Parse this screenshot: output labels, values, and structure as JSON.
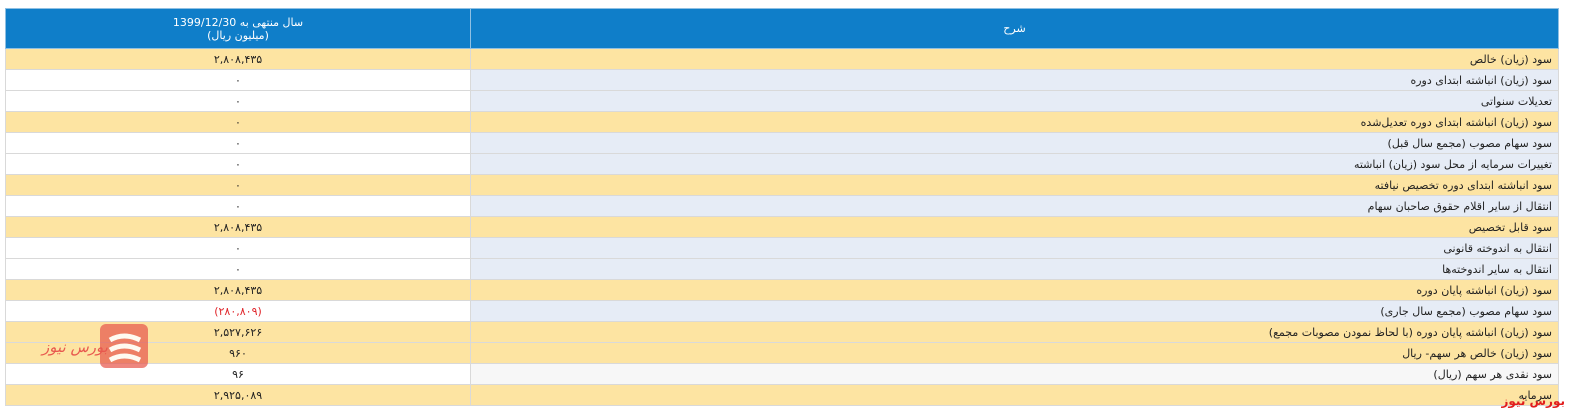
{
  "table": {
    "headers": {
      "value_line1": "سال منتهی به 1399/12/30",
      "value_line2": "(میلیون ریال)",
      "description": "شرح"
    },
    "rows": [
      {
        "value": "۲,۸۰۸,۴۳۵",
        "desc": "سود (زیان) خالص"
      },
      {
        "value": "۰",
        "desc": "سود (زیان) انباشته ابتدای دوره"
      },
      {
        "value": "۰",
        "desc": "تعدیلات سنواتی"
      },
      {
        "value": "۰",
        "desc": "سود (زیان) انباشته ابتدای دوره تعدیل‌شده"
      },
      {
        "value": "۰",
        "desc": "سود سهام مصوب (مجمع سال قبل)"
      },
      {
        "value": "۰",
        "desc": "تغییرات سرمایه از محل سود (زیان) انباشته"
      },
      {
        "value": "۰",
        "desc": "سود انباشته ابتدای دوره تخصیص نیافته"
      },
      {
        "value": "۰",
        "desc": "انتقال از سایر اقلام حقوق صاحبان سهام"
      },
      {
        "value": "۲,۸۰۸,۴۳۵",
        "desc": "سود قابل تخصیص"
      },
      {
        "value": "۰",
        "desc": "انتقال به اندوخته قانونی"
      },
      {
        "value": "۰",
        "desc": "انتقال به سایر اندوخته‌ها"
      },
      {
        "value": "۲,۸۰۸,۴۳۵",
        "desc": "سود (زیان) انباشته پایان دوره"
      },
      {
        "value": "(۲۸۰,۸۰۹)",
        "desc": "سود سهام مصوب (مجمع سال جاری)"
      },
      {
        "value": "۲,۵۲۷,۶۲۶",
        "desc": "سود (زیان) انباشته پایان دوره (با لحاظ نمودن مصوبات مجمع)"
      },
      {
        "value": "۹۶۰",
        "desc": "سود (زیان) خالص هر سهم- ریال"
      },
      {
        "value": "۹۶",
        "desc": "سود نقدی هر سهم (ریال)"
      },
      {
        "value": "۲,۹۲۵,۰۸۹",
        "desc": "سرمایه"
      }
    ]
  },
  "watermark": {
    "text": "بورس نیوز",
    "color": "#e8584e"
  },
  "corner_brand": {
    "text": "بورس نیوز",
    "color": "#e11d1d"
  },
  "colors": {
    "header": "#0f7ec9",
    "highlight": "#fde4a2",
    "negative": "#e0262b"
  }
}
